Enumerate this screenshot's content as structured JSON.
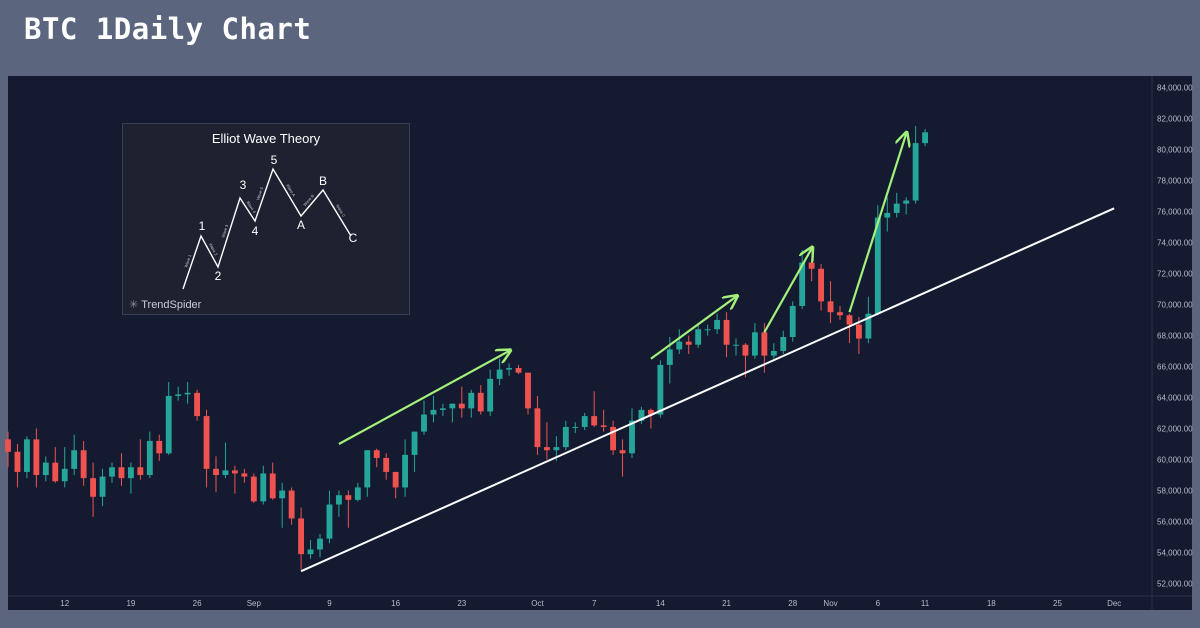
{
  "header": {
    "title": "BTC 1Daily Chart"
  },
  "colors": {
    "up": "#26a69a",
    "down": "#ef5350",
    "trendline": "#ffffff",
    "arrow": "#a3f07a",
    "background": "#141a30"
  },
  "inset": {
    "title": "Elliot Wave Theory",
    "brand": "TrendSpider",
    "points": [
      "1",
      "2",
      "3",
      "4",
      "5",
      "A",
      "B",
      "C"
    ],
    "segments": [
      "Wave 1",
      "Wave 2",
      "Wave 3",
      "Wave 4",
      "Wave 5",
      "Wave A",
      "Wave B",
      "Wave C"
    ]
  },
  "chart_data": {
    "type": "candlestick",
    "title": "",
    "x_ticks": [
      "12",
      "19",
      "26",
      "Sep",
      "9",
      "16",
      "23",
      "Oct",
      "7",
      "14",
      "21",
      "28",
      "Nov",
      "6",
      "11",
      "18",
      "25",
      "Dec"
    ],
    "y_ticks": [
      "52,000.00",
      "54,000.00",
      "56,000.00",
      "58,000.00",
      "60,000.00",
      "62,000.00",
      "64,000.00",
      "66,000.00",
      "68,000.00",
      "70,000.00",
      "72,000.00",
      "74,000.00",
      "76,000.00",
      "78,000.00",
      "80,000.00",
      "82,000.00",
      "84,000.00"
    ],
    "ylim": [
      51200,
      84600
    ],
    "x_range": [
      "2024-08-06",
      "2024-12-05"
    ],
    "candles": [
      {
        "date": "2024-08-06",
        "o": 61300,
        "h": 61800,
        "l": 59500,
        "c": 60500
      },
      {
        "date": "2024-08-07",
        "o": 60500,
        "h": 61000,
        "l": 58200,
        "c": 59200
      },
      {
        "date": "2024-08-08",
        "o": 59200,
        "h": 61500,
        "l": 58800,
        "c": 61300
      },
      {
        "date": "2024-08-09",
        "o": 61300,
        "h": 62000,
        "l": 58200,
        "c": 59000
      },
      {
        "date": "2024-08-10",
        "o": 59000,
        "h": 60200,
        "l": 58600,
        "c": 59800
      },
      {
        "date": "2024-08-11",
        "o": 59800,
        "h": 60800,
        "l": 58500,
        "c": 58600
      },
      {
        "date": "2024-08-12",
        "o": 58600,
        "h": 60800,
        "l": 58200,
        "c": 59400
      },
      {
        "date": "2024-08-13",
        "o": 59400,
        "h": 61600,
        "l": 59000,
        "c": 60600
      },
      {
        "date": "2024-08-14",
        "o": 60600,
        "h": 61200,
        "l": 58300,
        "c": 58800
      },
      {
        "date": "2024-08-15",
        "o": 58800,
        "h": 59800,
        "l": 56300,
        "c": 57600
      },
      {
        "date": "2024-08-16",
        "o": 57600,
        "h": 59400,
        "l": 57000,
        "c": 58900
      },
      {
        "date": "2024-08-17",
        "o": 58900,
        "h": 59800,
        "l": 58500,
        "c": 59500
      },
      {
        "date": "2024-08-18",
        "o": 59500,
        "h": 60400,
        "l": 58300,
        "c": 58800
      },
      {
        "date": "2024-08-19",
        "o": 58800,
        "h": 59800,
        "l": 57800,
        "c": 59500
      },
      {
        "date": "2024-08-20",
        "o": 59500,
        "h": 61300,
        "l": 58700,
        "c": 59000
      },
      {
        "date": "2024-08-21",
        "o": 59000,
        "h": 61800,
        "l": 58800,
        "c": 61200
      },
      {
        "date": "2024-08-22",
        "o": 61200,
        "h": 61600,
        "l": 59900,
        "c": 60400
      },
      {
        "date": "2024-08-23",
        "o": 60400,
        "h": 65000,
        "l": 60300,
        "c": 64100
      },
      {
        "date": "2024-08-24",
        "o": 64100,
        "h": 64700,
        "l": 63800,
        "c": 64200
      },
      {
        "date": "2024-08-25",
        "o": 64200,
        "h": 65000,
        "l": 63600,
        "c": 64300
      },
      {
        "date": "2024-08-26",
        "o": 64300,
        "h": 64500,
        "l": 62500,
        "c": 62800
      },
      {
        "date": "2024-08-27",
        "o": 62800,
        "h": 63200,
        "l": 58200,
        "c": 59400
      },
      {
        "date": "2024-08-28",
        "o": 59400,
        "h": 60200,
        "l": 57900,
        "c": 59000
      },
      {
        "date": "2024-08-29",
        "o": 59000,
        "h": 61100,
        "l": 58800,
        "c": 59300
      },
      {
        "date": "2024-08-30",
        "o": 59300,
        "h": 59600,
        "l": 57800,
        "c": 59100
      },
      {
        "date": "2024-08-31",
        "o": 59100,
        "h": 59400,
        "l": 58500,
        "c": 58900
      },
      {
        "date": "2024-09-01",
        "o": 58900,
        "h": 59100,
        "l": 57200,
        "c": 57300
      },
      {
        "date": "2024-09-02",
        "o": 57300,
        "h": 59600,
        "l": 57100,
        "c": 59100
      },
      {
        "date": "2024-09-03",
        "o": 59100,
        "h": 59800,
        "l": 57400,
        "c": 57500
      },
      {
        "date": "2024-09-04",
        "o": 57500,
        "h": 58500,
        "l": 55600,
        "c": 58000
      },
      {
        "date": "2024-09-05",
        "o": 58000,
        "h": 58200,
        "l": 55800,
        "c": 56200
      },
      {
        "date": "2024-09-06",
        "o": 56200,
        "h": 56900,
        "l": 52900,
        "c": 53900
      },
      {
        "date": "2024-09-07",
        "o": 53900,
        "h": 54800,
        "l": 53600,
        "c": 54200
      },
      {
        "date": "2024-09-08",
        "o": 54200,
        "h": 55200,
        "l": 53700,
        "c": 54900
      },
      {
        "date": "2024-09-09",
        "o": 54900,
        "h": 58000,
        "l": 54600,
        "c": 57100
      },
      {
        "date": "2024-09-10",
        "o": 57100,
        "h": 58000,
        "l": 56300,
        "c": 57700
      },
      {
        "date": "2024-09-11",
        "o": 57700,
        "h": 58000,
        "l": 55600,
        "c": 57400
      },
      {
        "date": "2024-09-12",
        "o": 57400,
        "h": 58500,
        "l": 57300,
        "c": 58200
      },
      {
        "date": "2024-09-13",
        "o": 58200,
        "h": 60600,
        "l": 57600,
        "c": 60600
      },
      {
        "date": "2024-09-14",
        "o": 60600,
        "h": 60700,
        "l": 59500,
        "c": 60100
      },
      {
        "date": "2024-09-15",
        "o": 60100,
        "h": 60400,
        "l": 58700,
        "c": 59200
      },
      {
        "date": "2024-09-16",
        "o": 59200,
        "h": 59200,
        "l": 57500,
        "c": 58200
      },
      {
        "date": "2024-09-17",
        "o": 58200,
        "h": 61300,
        "l": 57600,
        "c": 60300
      },
      {
        "date": "2024-09-18",
        "o": 60300,
        "h": 61700,
        "l": 59200,
        "c": 61800
      },
      {
        "date": "2024-09-19",
        "o": 61800,
        "h": 63800,
        "l": 61600,
        "c": 62900
      },
      {
        "date": "2024-09-20",
        "o": 62900,
        "h": 64100,
        "l": 62400,
        "c": 63200
      },
      {
        "date": "2024-09-21",
        "o": 63200,
        "h": 63600,
        "l": 62800,
        "c": 63300
      },
      {
        "date": "2024-09-22",
        "o": 63300,
        "h": 63600,
        "l": 62400,
        "c": 63600
      },
      {
        "date": "2024-09-23",
        "o": 63600,
        "h": 64700,
        "l": 62700,
        "c": 63300
      },
      {
        "date": "2024-09-24",
        "o": 63300,
        "h": 64500,
        "l": 62700,
        "c": 64300
      },
      {
        "date": "2024-09-25",
        "o": 64300,
        "h": 64800,
        "l": 62900,
        "c": 63100
      },
      {
        "date": "2024-09-26",
        "o": 63100,
        "h": 65800,
        "l": 62800,
        "c": 65200
      },
      {
        "date": "2024-09-27",
        "o": 65200,
        "h": 66500,
        "l": 64800,
        "c": 65800
      },
      {
        "date": "2024-09-28",
        "o": 65800,
        "h": 66200,
        "l": 65400,
        "c": 65900
      },
      {
        "date": "2024-09-29",
        "o": 65900,
        "h": 66100,
        "l": 65500,
        "c": 65600
      },
      {
        "date": "2024-09-30",
        "o": 65600,
        "h": 65600,
        "l": 62900,
        "c": 63300
      },
      {
        "date": "2024-10-01",
        "o": 63300,
        "h": 64100,
        "l": 60300,
        "c": 60800
      },
      {
        "date": "2024-10-02",
        "o": 60800,
        "h": 62400,
        "l": 60000,
        "c": 60600
      },
      {
        "date": "2024-10-03",
        "o": 60600,
        "h": 61500,
        "l": 59900,
        "c": 60800
      },
      {
        "date": "2024-10-04",
        "o": 60800,
        "h": 62500,
        "l": 60600,
        "c": 62100
      },
      {
        "date": "2024-10-05",
        "o": 62100,
        "h": 62400,
        "l": 61700,
        "c": 62100
      },
      {
        "date": "2024-10-06",
        "o": 62100,
        "h": 63000,
        "l": 61900,
        "c": 62800
      },
      {
        "date": "2024-10-07",
        "o": 62800,
        "h": 64400,
        "l": 62100,
        "c": 62200
      },
      {
        "date": "2024-10-08",
        "o": 62200,
        "h": 63200,
        "l": 61800,
        "c": 62100
      },
      {
        "date": "2024-10-09",
        "o": 62100,
        "h": 62500,
        "l": 60300,
        "c": 60600
      },
      {
        "date": "2024-10-10",
        "o": 60600,
        "h": 61300,
        "l": 58900,
        "c": 60400
      },
      {
        "date": "2024-10-11",
        "o": 60400,
        "h": 63300,
        "l": 60100,
        "c": 62500
      },
      {
        "date": "2024-10-12",
        "o": 62500,
        "h": 63400,
        "l": 62300,
        "c": 63200
      },
      {
        "date": "2024-10-13",
        "o": 63200,
        "h": 63300,
        "l": 62000,
        "c": 62900
      },
      {
        "date": "2024-10-14",
        "o": 62900,
        "h": 66400,
        "l": 62700,
        "c": 66100
      },
      {
        "date": "2024-10-15",
        "o": 66100,
        "h": 67900,
        "l": 64900,
        "c": 67100
      },
      {
        "date": "2024-10-16",
        "o": 67100,
        "h": 68400,
        "l": 66800,
        "c": 67600
      },
      {
        "date": "2024-10-17",
        "o": 67600,
        "h": 68000,
        "l": 66800,
        "c": 67400
      },
      {
        "date": "2024-10-18",
        "o": 67400,
        "h": 68800,
        "l": 67200,
        "c": 68400
      },
      {
        "date": "2024-10-19",
        "o": 68400,
        "h": 68700,
        "l": 68000,
        "c": 68400
      },
      {
        "date": "2024-10-20",
        "o": 68400,
        "h": 69400,
        "l": 68100,
        "c": 69000
      },
      {
        "date": "2024-10-21",
        "o": 69000,
        "h": 69500,
        "l": 66600,
        "c": 67400
      },
      {
        "date": "2024-10-22",
        "o": 67400,
        "h": 67800,
        "l": 66700,
        "c": 67400
      },
      {
        "date": "2024-10-23",
        "o": 67400,
        "h": 67500,
        "l": 65300,
        "c": 66700
      },
      {
        "date": "2024-10-24",
        "o": 66700,
        "h": 68800,
        "l": 66500,
        "c": 68200
      },
      {
        "date": "2024-10-25",
        "o": 68200,
        "h": 68800,
        "l": 65600,
        "c": 66700
      },
      {
        "date": "2024-10-26",
        "o": 66700,
        "h": 67500,
        "l": 66500,
        "c": 67000
      },
      {
        "date": "2024-10-27",
        "o": 67000,
        "h": 68300,
        "l": 66800,
        "c": 67900
      },
      {
        "date": "2024-10-28",
        "o": 67900,
        "h": 70200,
        "l": 67600,
        "c": 69900
      },
      {
        "date": "2024-10-29",
        "o": 69900,
        "h": 73500,
        "l": 69700,
        "c": 72700
      },
      {
        "date": "2024-10-30",
        "o": 72700,
        "h": 72900,
        "l": 71500,
        "c": 72300
      },
      {
        "date": "2024-10-31",
        "o": 72300,
        "h": 72600,
        "l": 69600,
        "c": 70200
      },
      {
        "date": "2024-11-01",
        "o": 70200,
        "h": 71500,
        "l": 68800,
        "c": 69500
      },
      {
        "date": "2024-11-02",
        "o": 69500,
        "h": 69900,
        "l": 69000,
        "c": 69300
      },
      {
        "date": "2024-11-03",
        "o": 69300,
        "h": 69400,
        "l": 67500,
        "c": 68700
      },
      {
        "date": "2024-11-04",
        "o": 68700,
        "h": 69200,
        "l": 66800,
        "c": 67800
      },
      {
        "date": "2024-11-05",
        "o": 67800,
        "h": 70500,
        "l": 67500,
        "c": 69400
      },
      {
        "date": "2024-11-06",
        "o": 69400,
        "h": 76400,
        "l": 69300,
        "c": 75600
      },
      {
        "date": "2024-11-07",
        "o": 75600,
        "h": 76900,
        "l": 74700,
        "c": 75900
      },
      {
        "date": "2024-11-08",
        "o": 75900,
        "h": 77200,
        "l": 75600,
        "c": 76500
      },
      {
        "date": "2024-11-09",
        "o": 76500,
        "h": 76900,
        "l": 75800,
        "c": 76700
      },
      {
        "date": "2024-11-10",
        "o": 76700,
        "h": 81500,
        "l": 76500,
        "c": 80400
      },
      {
        "date": "2024-11-11",
        "o": 80400,
        "h": 81300,
        "l": 80200,
        "c": 81100
      }
    ],
    "trendline": [
      {
        "date": "2024-09-06",
        "value": 52800
      },
      {
        "date": "2024-12-01",
        "value": 76200
      }
    ],
    "arrows": [
      {
        "from": {
          "date": "2024-09-10",
          "value": 61000
        },
        "to": {
          "date": "2024-09-28",
          "value": 67000
        }
      },
      {
        "from": {
          "date": "2024-10-13",
          "value": 66500
        },
        "to": {
          "date": "2024-10-22",
          "value": 70500
        }
      },
      {
        "from": {
          "date": "2024-10-25",
          "value": 68200
        },
        "to": {
          "date": "2024-10-30",
          "value": 73600
        }
      },
      {
        "from": {
          "date": "2024-11-03",
          "value": 69500
        },
        "to": {
          "date": "2024-11-09",
          "value": 81000
        }
      }
    ]
  }
}
